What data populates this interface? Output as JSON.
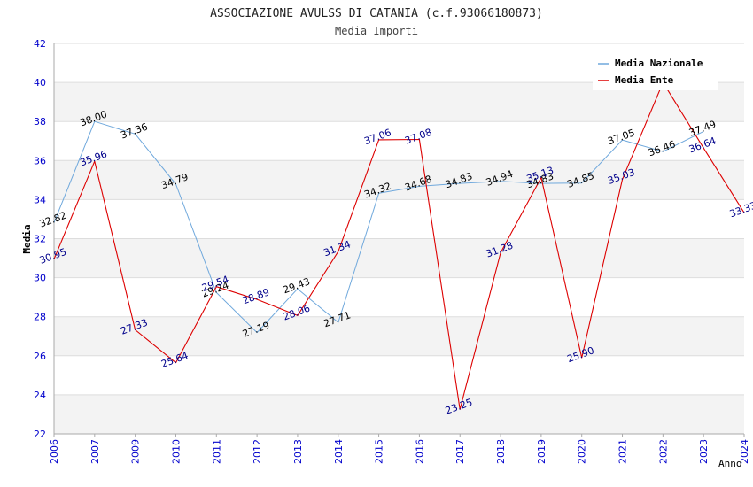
{
  "chart_data": {
    "type": "line",
    "title": "ASSOCIAZIONE AVULSS DI CATANIA (c.f.93066180873)",
    "subtitle": "Media Importi",
    "xlabel": "Anno",
    "ylabel": "Media",
    "ylim": [
      22,
      42
    ],
    "yticks": [
      22,
      24,
      26,
      28,
      30,
      32,
      34,
      36,
      38,
      40,
      42
    ],
    "categories": [
      "2006",
      "2007",
      "2009",
      "2010",
      "2011",
      "2012",
      "2013",
      "2014",
      "2015",
      "2016",
      "2017",
      "2018",
      "2019",
      "2020",
      "2021",
      "2022",
      "2023",
      "2024"
    ],
    "series": [
      {
        "name": "Media Nazionale",
        "color": "#6fa8dc",
        "label_color": "#000000",
        "values": [
          32.82,
          38.0,
          37.36,
          34.79,
          29.24,
          27.19,
          29.43,
          27.71,
          34.32,
          34.68,
          34.83,
          34.94,
          34.83,
          34.85,
          37.05,
          36.46,
          37.49,
          null
        ],
        "labels": [
          "32.82",
          "38.00",
          "37.36",
          "34.79",
          "29.24",
          "27.19",
          "29.43",
          "27.71",
          "34.32",
          "34.68",
          "34.83",
          "34.94",
          "34.83",
          "34.85",
          "37.05",
          "36.46",
          "37.49",
          ""
        ]
      },
      {
        "name": "Media Ente",
        "color": "#dd0000",
        "label_color": "#00008b",
        "values": [
          30.95,
          35.96,
          27.33,
          25.64,
          29.54,
          28.89,
          28.06,
          31.34,
          37.06,
          37.08,
          23.25,
          31.28,
          35.13,
          25.9,
          35.03,
          40.0,
          36.64,
          33.33
        ],
        "labels": [
          "30.95",
          "35.96",
          "27.33",
          "25.64",
          "29.54",
          "28.89",
          "28.06",
          "31.34",
          "37.06",
          "37.08",
          "23.25",
          "31.28",
          "35.13",
          "25.90",
          "35.03",
          "",
          "36.64",
          "33.33"
        ]
      }
    ],
    "grid": true,
    "legend_position": "top-right",
    "colors": {
      "band_light": "#f3f3f3",
      "gridline": "#dddddd",
      "axis": "#aaaaaa",
      "tick_text": "#0000cc"
    }
  }
}
